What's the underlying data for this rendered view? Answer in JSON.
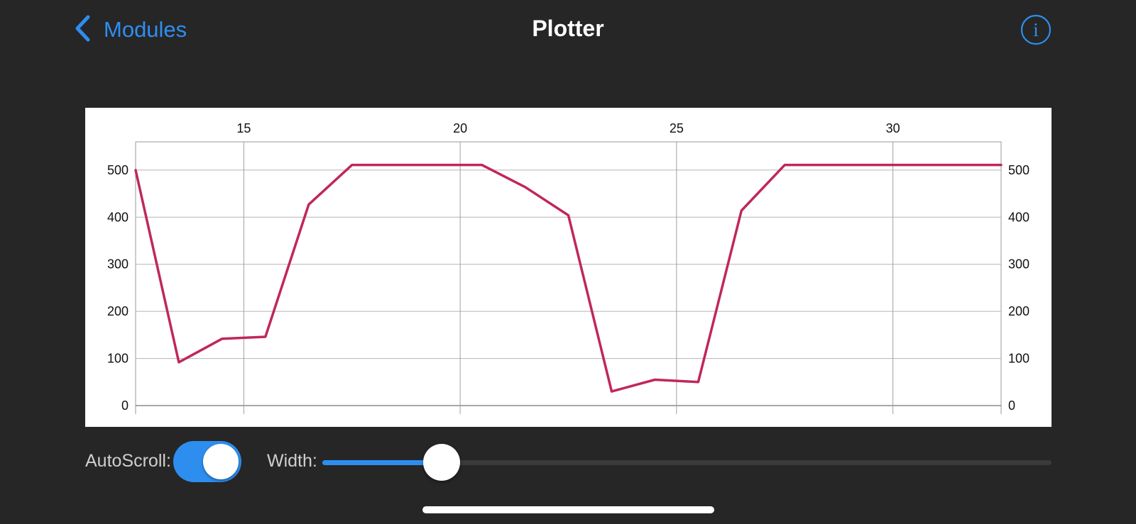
{
  "nav": {
    "back_label": "Modules",
    "title": "Plotter",
    "info_glyph": "i",
    "back_icon": "chevron-left-icon",
    "info_icon": "info-icon"
  },
  "colors": {
    "background": "#262626",
    "accent": "#2e8ef0",
    "series": "#c0275a",
    "panel": "#ffffff"
  },
  "chart_data": {
    "type": "line",
    "xlim": [
      12.5,
      32.5
    ],
    "ylim": [
      0,
      560
    ],
    "x_ticks": [
      15,
      20,
      25,
      30
    ],
    "y_ticks": [
      0,
      100,
      200,
      300,
      400,
      500
    ],
    "x_tick_position": "top",
    "y_tick_position": "both",
    "grid": true,
    "series": [
      {
        "color": "#c0275a",
        "x": [
          12.5,
          13.5,
          14.5,
          15.5,
          16.5,
          17.5,
          18.5,
          19.5,
          20.5,
          21.5,
          22.5,
          23.5,
          24.5,
          25.5,
          26.5,
          27.5,
          28.5,
          29.5,
          30.5,
          31.5,
          32.5
        ],
        "y": [
          500,
          92,
          142,
          146,
          427,
          511,
          511,
          511,
          511,
          464,
          404,
          30,
          55,
          50,
          414,
          511,
          511,
          511,
          511,
          511,
          511
        ]
      }
    ]
  },
  "controls": {
    "autoscroll_label": "AutoScroll:",
    "autoscroll_on": true,
    "width_label": "Width:",
    "width_fraction": 0.164
  }
}
